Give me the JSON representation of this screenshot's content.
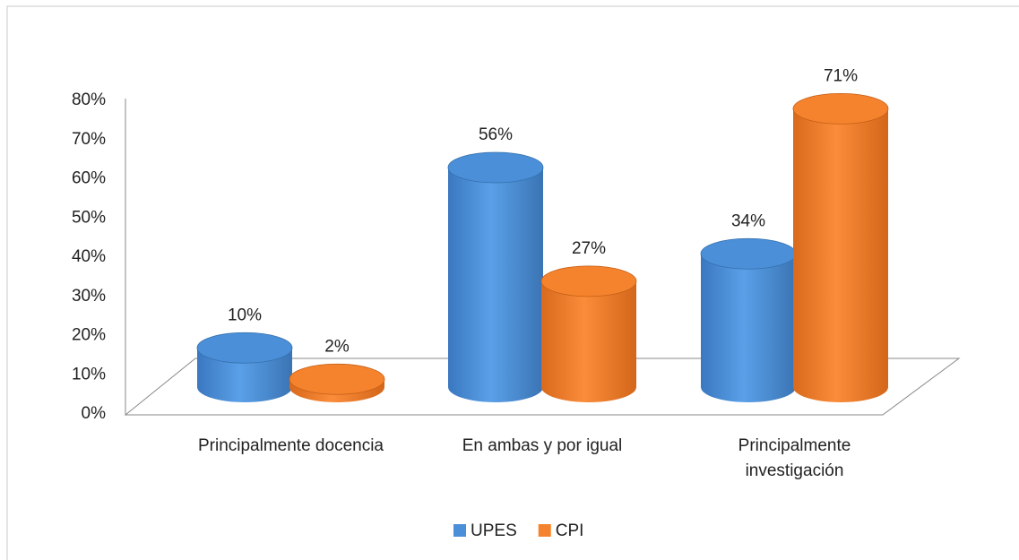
{
  "chart_data": {
    "type": "bar3d",
    "categories": [
      "Principalmente docencia",
      "En ambas y por igual",
      "Principalmente investigación"
    ],
    "series": [
      {
        "name": "UPES",
        "color": "#4a8fd8",
        "values": [
          10,
          56,
          34
        ],
        "value_labels": [
          "10%",
          "56%",
          "34%"
        ]
      },
      {
        "name": "CPI",
        "color": "#f5832d",
        "values": [
          2,
          27,
          71
        ],
        "value_labels": [
          "2%",
          "27%",
          "71%"
        ]
      }
    ],
    "ylim": [
      0,
      80
    ],
    "yticks": [
      {
        "value": 0,
        "label": "0%"
      },
      {
        "value": 10,
        "label": "10%"
      },
      {
        "value": 20,
        "label": "20%"
      },
      {
        "value": 30,
        "label": "30%"
      },
      {
        "value": 40,
        "label": "40%"
      },
      {
        "value": 50,
        "label": "50%"
      },
      {
        "value": 60,
        "label": "60%"
      },
      {
        "value": 70,
        "label": "70%"
      },
      {
        "value": 80,
        "label": "80%"
      }
    ],
    "legend": "bottom"
  }
}
